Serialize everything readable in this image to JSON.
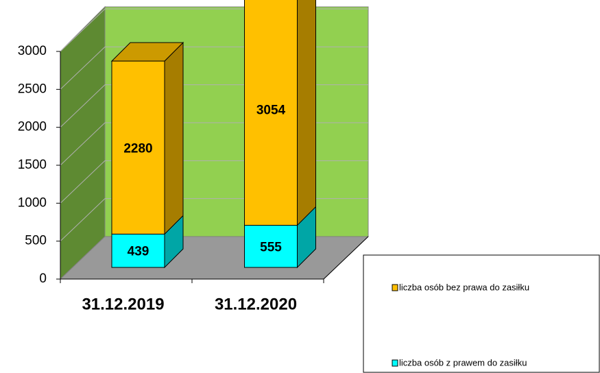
{
  "chart_data": {
    "type": "bar3d_stacked",
    "categories": [
      "31.12.2019",
      "31.12.2020"
    ],
    "series": [
      {
        "name": "liczba osób z prawem do zasiłku",
        "color": "#00ffff",
        "values": [
          439,
          555
        ]
      },
      {
        "name": "liczba osób bez prawa do zasiłku",
        "color": "#ffc000",
        "values": [
          2280,
          3054
        ]
      }
    ],
    "ylim": [
      0,
      3000
    ],
    "yticks": [
      0,
      500,
      1000,
      1500,
      2000,
      2500,
      3000
    ],
    "grid": true,
    "legend": "bottom-right"
  }
}
